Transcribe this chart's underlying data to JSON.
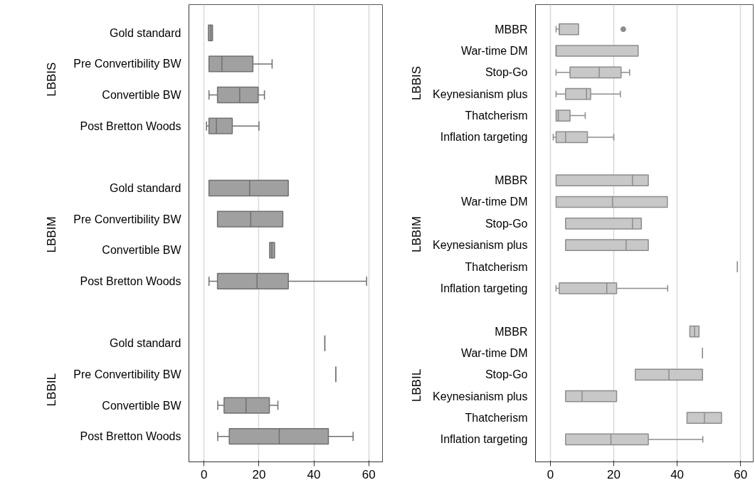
{
  "chart_data": [
    {
      "type": "box",
      "orientation": "horizontal",
      "xlim": [
        -5.5,
        65
      ],
      "xticks": [
        0,
        20,
        40,
        60
      ],
      "grid": "x",
      "annotations": [
        "LBBIS",
        "LBBIM",
        "LBBIL"
      ],
      "categories": [
        "Gold standard",
        "Pre Convertibility BW",
        "Convertible BW",
        "Post Bretton Woods",
        null,
        "Gold standard",
        "Pre Convertibility BW",
        "Convertible BW",
        "Post Bretton Woods",
        null,
        "Gold standard",
        "Pre Convertibility BW",
        "Convertible BW",
        "Post Bretton Woods"
      ],
      "color": "#a0a0a0",
      "boxes": [
        {
          "low": 1.6,
          "q1": 1.6,
          "median": 2.5,
          "q3": 3.1,
          "high": 3.1
        },
        {
          "low": 1.8,
          "q1": 1.8,
          "median": 6.5,
          "q3": 17.8,
          "high": 24.8
        },
        {
          "low": 1.8,
          "q1": 4.9,
          "median": 13,
          "q3": 19.7,
          "high": 22
        },
        {
          "low": 0.9,
          "q1": 1.8,
          "median": 4.5,
          "q3": 10.3,
          "high": 20
        },
        null,
        {
          "low": 1.8,
          "q1": 1.8,
          "median": 16.6,
          "q3": 30.7,
          "high": 30.7
        },
        {
          "low": 4.9,
          "q1": 4.9,
          "median": 17,
          "q3": 28.7,
          "high": 28.7
        },
        {
          "low": 23.9,
          "q1": 23.9,
          "median": 24.7,
          "q3": 25.7,
          "high": 25.7
        },
        {
          "low": 1.8,
          "q1": 4.9,
          "median": 19.3,
          "q3": 30.7,
          "high": 59.2
        },
        null,
        {
          "low": 44,
          "q1": 44,
          "median": 44,
          "q3": 44,
          "high": 44
        },
        {
          "low": 48,
          "q1": 48,
          "median": 48,
          "q3": 48,
          "high": 48
        },
        {
          "low": 5,
          "q1": 7.3,
          "median": 15.3,
          "q3": 23.8,
          "high": 26.9
        },
        {
          "low": 5,
          "q1": 9.2,
          "median": 27.4,
          "q3": 45.3,
          "high": 54.3
        }
      ]
    },
    {
      "type": "box",
      "orientation": "horizontal",
      "xlim": [
        -4.7,
        64
      ],
      "xticks": [
        0,
        20,
        40,
        60
      ],
      "grid": "x",
      "annotations": [
        "LBBIS",
        "LBBIM",
        "LBBIL"
      ],
      "categories": [
        "MBBR",
        "War-time DM",
        "Stop-Go",
        "Keynesianism plus",
        "Thatcherism",
        "Inflation targeting",
        null,
        "MBBR",
        "War-time DM",
        "Stop-Go",
        "Keynesianism plus",
        "Thatcherism",
        "Inflation targeting",
        null,
        "MBBR",
        "War-time DM",
        "Stop-Go",
        "Keynesianism plus",
        "Thatcherism",
        "Inflation targeting"
      ],
      "color": "#c8c8c8",
      "boxes": [
        {
          "low": 1.8,
          "q1": 2.8,
          "median": 2.8,
          "q3": 8.9,
          "high": 8.9,
          "outliers": [
            23
          ]
        },
        {
          "low": 1.8,
          "q1": 1.8,
          "median": 1.8,
          "q3": 27.7,
          "high": 27.7
        },
        {
          "low": 1.8,
          "q1": 6.2,
          "median": 15.4,
          "q3": 22.3,
          "high": 25
        },
        {
          "low": 1.8,
          "q1": 4.8,
          "median": 11.4,
          "q3": 12.7,
          "high": 22.1
        },
        {
          "low": 1.8,
          "q1": 1.8,
          "median": 2.5,
          "q3": 6.2,
          "high": 11
        },
        {
          "low": 0.9,
          "q1": 1.8,
          "median": 4.8,
          "q3": 11.7,
          "high": 20
        },
        null,
        {
          "low": 1.8,
          "q1": 1.8,
          "median": 25.9,
          "q3": 30.9,
          "high": 30.9
        },
        {
          "low": 1.8,
          "q1": 1.8,
          "median": 19.6,
          "q3": 36.9,
          "high": 36.9
        },
        {
          "low": 4.8,
          "q1": 4.8,
          "median": 25.9,
          "q3": 28.7,
          "high": 28.7
        },
        {
          "low": 4.8,
          "q1": 4.8,
          "median": 23.9,
          "q3": 30.9,
          "high": 30.9
        },
        {
          "low": 59,
          "q1": 59,
          "median": 59,
          "q3": 59,
          "high": 59
        },
        {
          "low": 1.8,
          "q1": 2.8,
          "median": 17.8,
          "q3": 20.9,
          "high": 37
        },
        null,
        {
          "low": 44,
          "q1": 44,
          "median": 45.5,
          "q3": 46.9,
          "high": 46.9
        },
        {
          "low": 48,
          "q1": 48,
          "median": 48,
          "q3": 48,
          "high": 48
        },
        {
          "low": 26.8,
          "q1": 26.8,
          "median": 37.4,
          "q3": 48,
          "high": 48
        },
        {
          "low": 4.8,
          "q1": 4.8,
          "median": 10,
          "q3": 20.9,
          "high": 20.9
        },
        {
          "low": 43.1,
          "q1": 43.1,
          "median": 48.6,
          "q3": 54,
          "high": 54
        },
        {
          "low": 4.8,
          "q1": 4.8,
          "median": 19.1,
          "q3": 30.9,
          "high": 48.1
        }
      ]
    }
  ]
}
